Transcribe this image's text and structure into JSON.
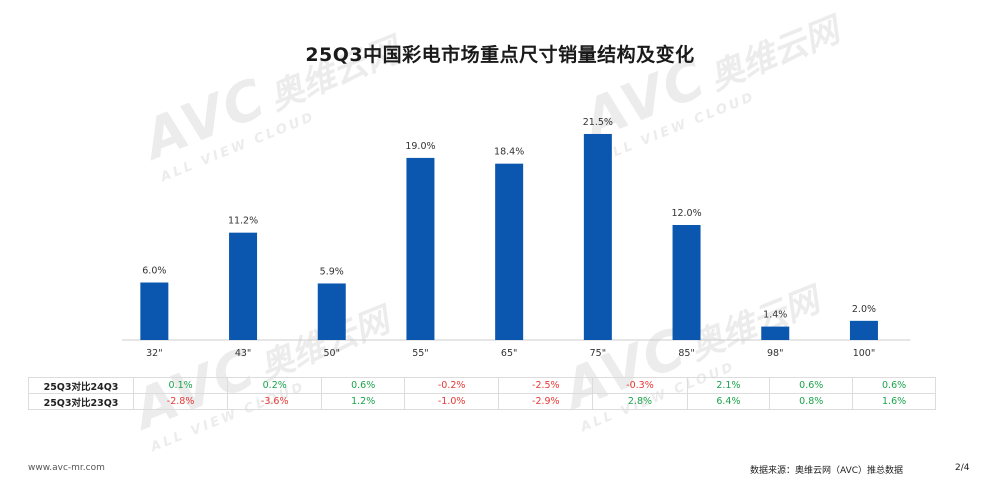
{
  "chart_data": {
    "type": "bar",
    "title": "25Q3中国彩电市场重点尺寸销量结构及变化",
    "categories": [
      "32\"",
      "43\"",
      "50\"",
      "55\"",
      "65\"",
      "75\"",
      "85\"",
      "98\"",
      "100\""
    ],
    "values": [
      6.0,
      11.2,
      5.9,
      19.0,
      18.4,
      21.5,
      12.0,
      1.4,
      2.0
    ],
    "value_labels": [
      "6.0%",
      "11.2%",
      "5.9%",
      "19.0%",
      "18.4%",
      "21.5%",
      "12.0%",
      "1.4%",
      "2.0%"
    ],
    "unit": "%",
    "ylim": [
      0,
      24
    ],
    "grid": false,
    "bar_color": "#0b57b0",
    "table_rows": [
      {
        "label": "25Q3对比24Q3",
        "values": [
          "0.1%",
          "0.2%",
          "0.6%",
          "-0.2%",
          "-2.5%",
          "-0.3%",
          "2.1%",
          "0.6%",
          "0.6%"
        ]
      },
      {
        "label": "25Q3对比23Q3",
        "values": [
          "-2.8%",
          "-3.6%",
          "1.2%",
          "-1.0%",
          "-2.9%",
          "2.8%",
          "6.4%",
          "0.8%",
          "1.6%"
        ]
      }
    ]
  },
  "colors": {
    "positive": "#1aa34a",
    "negative": "#e53935",
    "bar": "#0b57b0"
  },
  "watermark": {
    "logo": "AVC",
    "cn": "奥维云网",
    "en": "ALL VIEW CLOUD"
  },
  "footer": {
    "website": "www.avc-mr.com",
    "source": "数据来源：奥维云网（AVC）推总数据",
    "page": "2/4"
  }
}
